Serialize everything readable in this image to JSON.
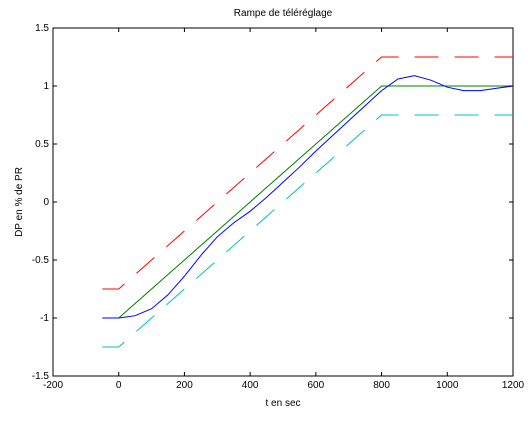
{
  "chart_data": {
    "type": "line",
    "title": "Rampe de téléréglage",
    "xlabel": "t en sec",
    "ylabel": "DP en % de PR",
    "xlim": [
      -200,
      1200
    ],
    "ylim": [
      -1.5,
      1.5
    ],
    "x_ticks": [
      -200,
      0,
      200,
      400,
      600,
      800,
      1000,
      1200
    ],
    "y_ticks": [
      -1.5,
      -1,
      -0.5,
      0,
      0.5,
      1,
      1.5
    ],
    "x_tick_labels": [
      "-200",
      "0",
      "200",
      "400",
      "600",
      "800",
      "1000",
      "1200"
    ],
    "y_tick_labels": [
      "-1.5",
      "-1",
      "-0.5",
      "0",
      "0.5",
      "1",
      "1.5"
    ],
    "grid": false,
    "series": [
      {
        "color": "#ff0000",
        "style": "dashed",
        "x": [
          -50,
          0,
          800,
          1200
        ],
        "y": [
          -0.75,
          -0.75,
          1.25,
          1.25
        ]
      },
      {
        "color": "#008000",
        "style": "solid",
        "x": [
          -50,
          0,
          800,
          1200
        ],
        "y": [
          -1.0,
          -1.0,
          1.0,
          1.0
        ]
      },
      {
        "color": "#00bfbf",
        "style": "dashed",
        "x": [
          -50,
          0,
          800,
          1200
        ],
        "y": [
          -1.25,
          -1.25,
          0.75,
          0.75
        ]
      },
      {
        "color": "#0000ff",
        "style": "solid",
        "x": [
          -50,
          0,
          50,
          100,
          150,
          200,
          250,
          300,
          350,
          400,
          450,
          500,
          550,
          600,
          650,
          700,
          750,
          800,
          850,
          900,
          950,
          1000,
          1050,
          1100,
          1150,
          1200
        ],
        "y": [
          -1.0,
          -1.0,
          -0.98,
          -0.92,
          -0.8,
          -0.64,
          -0.46,
          -0.3,
          -0.18,
          -0.08,
          0.04,
          0.17,
          0.3,
          0.44,
          0.57,
          0.7,
          0.83,
          0.96,
          1.06,
          1.09,
          1.05,
          0.99,
          0.96,
          0.96,
          0.98,
          1.0
        ]
      }
    ]
  }
}
